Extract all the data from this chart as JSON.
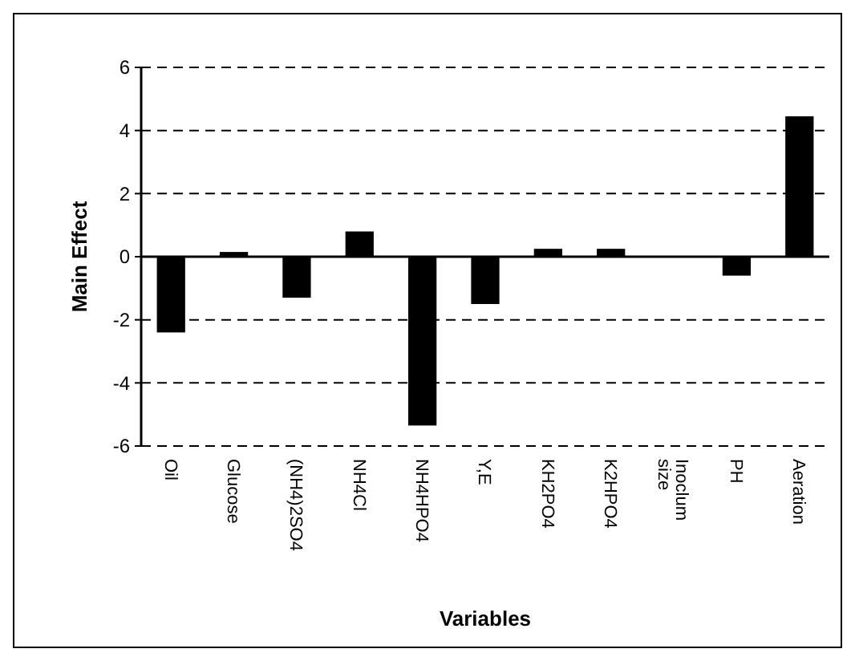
{
  "chart_data": {
    "type": "bar",
    "xlabel": "Variables",
    "ylabel": "Main Effect",
    "categories": [
      "Oil",
      "Glucose",
      "(NH4)2SO4",
      "NH4Cl",
      "NH4HPO4",
      "Y,E",
      "KH2PO4",
      "K2HPO4",
      "Inoclum size",
      "PH",
      "Aeration"
    ],
    "values": [
      -2.4,
      0.15,
      -1.3,
      0.8,
      -5.35,
      -1.5,
      0.25,
      0.25,
      0,
      -0.6,
      4.45
    ],
    "color": "#000000",
    "ylim": [
      -6,
      6
    ],
    "yticks": [
      -6,
      -4,
      -2,
      0,
      2,
      4,
      6
    ],
    "grid": "y"
  }
}
